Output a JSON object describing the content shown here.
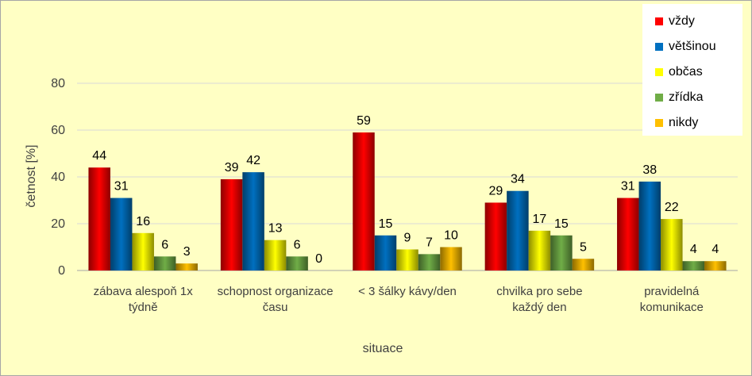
{
  "chart_data": {
    "type": "bar",
    "title": "",
    "xlabel": "situace",
    "ylabel": "četnost [%]",
    "ylim": [
      0,
      80
    ],
    "yticks": [
      0,
      20,
      40,
      60,
      80
    ],
    "grid": true,
    "legend_position": "top-right",
    "categories": [
      [
        "zábava alespoň 1x",
        "týdně"
      ],
      [
        "schopnost organizace",
        "času"
      ],
      [
        "< 3 šálky kávy/den"
      ],
      [
        "chvilka pro sebe",
        "každý den"
      ],
      [
        "pravidelná",
        "komunikace"
      ]
    ],
    "series": [
      {
        "name": "vždy",
        "color": "#ff0000",
        "values": [
          44,
          39,
          59,
          29,
          31
        ]
      },
      {
        "name": "většinou",
        "color": "#0070c0",
        "values": [
          31,
          42,
          15,
          34,
          38
        ]
      },
      {
        "name": "občas",
        "color": "#ffff00",
        "values": [
          16,
          13,
          9,
          17,
          22
        ]
      },
      {
        "name": "zřídka",
        "color": "#70ad47",
        "values": [
          6,
          6,
          7,
          15,
          4
        ]
      },
      {
        "name": "nikdy",
        "color": "#ffc000",
        "values": [
          3,
          0,
          10,
          5,
          4
        ]
      }
    ]
  }
}
